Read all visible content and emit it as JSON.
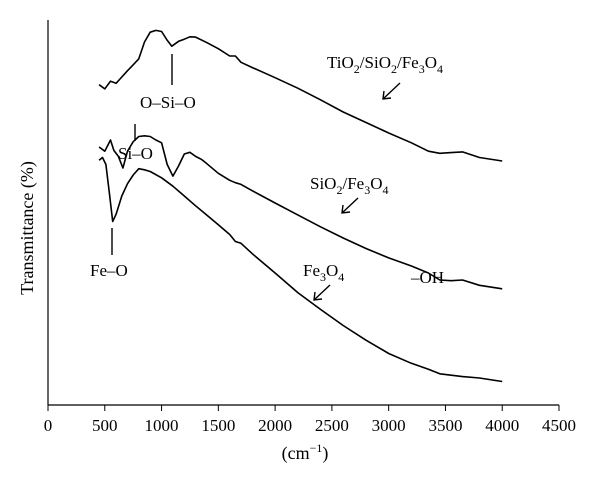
{
  "chart_data": {
    "type": "line",
    "xlabel": "(cm−1)",
    "ylabel": "Transmittance (%)",
    "xlim": [
      0,
      4500
    ],
    "xticks": [
      0,
      500,
      1000,
      1500,
      2000,
      2500,
      3000,
      3500,
      4000,
      4500
    ],
    "yticks_shown": false,
    "series": [
      {
        "name": "TiO2/SiO2/Fe3O4",
        "x": [
          450,
          500,
          550,
          600,
          650,
          700,
          750,
          800,
          850,
          900,
          950,
          1000,
          1050,
          1090,
          1150,
          1200,
          1250,
          1300,
          1400,
          1500,
          1600,
          1650,
          1700,
          1800,
          2000,
          2200,
          2400,
          2600,
          2800,
          3000,
          3200,
          3350,
          3450,
          3550,
          3650,
          3800,
          4000
        ],
        "y": [
          0.838,
          0.826,
          0.848,
          0.842,
          0.86,
          0.878,
          0.895,
          0.912,
          0.96,
          0.988,
          0.993,
          0.99,
          0.965,
          0.948,
          0.962,
          0.968,
          0.975,
          0.974,
          0.958,
          0.941,
          0.92,
          0.92,
          0.902,
          0.887,
          0.858,
          0.828,
          0.795,
          0.76,
          0.73,
          0.7,
          0.672,
          0.648,
          0.642,
          0.644,
          0.646,
          0.63,
          0.62
        ]
      },
      {
        "name": "SiO2/Fe3O4",
        "x": [
          450,
          500,
          550,
          580,
          620,
          660,
          700,
          750,
          800,
          850,
          900,
          950,
          1000,
          1050,
          1100,
          1150,
          1200,
          1250,
          1300,
          1350,
          1400,
          1500,
          1600,
          1650,
          1700,
          1800,
          2000,
          2200,
          2400,
          2600,
          2800,
          3000,
          3200,
          3350,
          3450,
          3550,
          3650,
          3800,
          4000
        ],
        "y": [
          0.66,
          0.648,
          0.68,
          0.65,
          0.633,
          0.6,
          0.648,
          0.675,
          0.69,
          0.692,
          0.69,
          0.68,
          0.672,
          0.61,
          0.577,
          0.606,
          0.64,
          0.645,
          0.633,
          0.625,
          0.612,
          0.585,
          0.565,
          0.558,
          0.553,
          0.535,
          0.5,
          0.466,
          0.432,
          0.4,
          0.37,
          0.343,
          0.32,
          0.3,
          0.28,
          0.278,
          0.28,
          0.265,
          0.255
        ]
      },
      {
        "name": "Fe3O4",
        "x": [
          450,
          480,
          510,
          540,
          570,
          600,
          650,
          700,
          750,
          800,
          850,
          900,
          1000,
          1100,
          1200,
          1300,
          1400,
          1500,
          1600,
          1650,
          1700,
          1800,
          2000,
          2200,
          2400,
          2600,
          2800,
          3000,
          3200,
          3350,
          3450,
          3550,
          3650,
          3800,
          4000
        ],
        "y": [
          0.622,
          0.63,
          0.61,
          0.53,
          0.447,
          0.468,
          0.52,
          0.555,
          0.58,
          0.598,
          0.595,
          0.59,
          0.572,
          0.548,
          0.52,
          0.492,
          0.465,
          0.438,
          0.41,
          0.39,
          0.385,
          0.355,
          0.3,
          0.244,
          0.196,
          0.15,
          0.108,
          0.07,
          0.042,
          0.025,
          0.012,
          0.008,
          0.004,
          0.0,
          -0.01
        ]
      }
    ],
    "annotations": {
      "label1": {
        "text": "TiO2/SiO2/Fe3O4"
      },
      "label2": {
        "text": "SiO2/Fe3O4"
      },
      "label3": {
        "text": "Fe3O4"
      },
      "osio": {
        "text": "O–Si–O"
      },
      "sio": {
        "text": "Si–O"
      },
      "feo": {
        "text": "Fe–O"
      },
      "oh": {
        "text": "–OH"
      }
    }
  }
}
